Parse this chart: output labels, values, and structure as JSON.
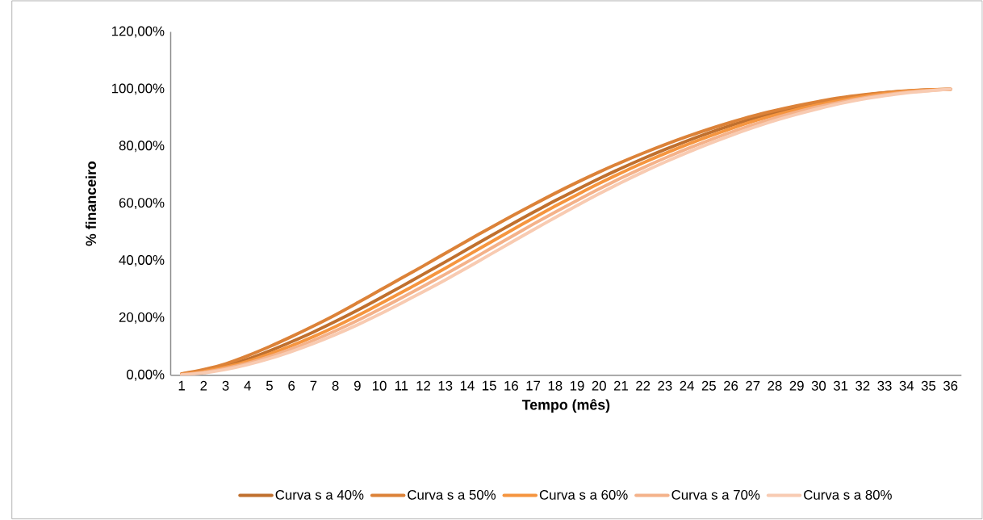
{
  "chart_data": {
    "type": "line",
    "xlabel": "Tempo (mês)",
    "ylabel": "% financeiro",
    "categories": [
      "1",
      "2",
      "3",
      "4",
      "5",
      "6",
      "7",
      "8",
      "9",
      "10",
      "11",
      "12",
      "13",
      "14",
      "15",
      "16",
      "17",
      "18",
      "19",
      "20",
      "21",
      "22",
      "23",
      "24",
      "25",
      "26",
      "27",
      "28",
      "29",
      "30",
      "31",
      "32",
      "33",
      "34",
      "35",
      "36"
    ],
    "ylim": [
      0,
      120
    ],
    "yticks": [
      {
        "value": 0,
        "label": "0,00%"
      },
      {
        "value": 20,
        "label": "20,00%"
      },
      {
        "value": 40,
        "label": "40,00%"
      },
      {
        "value": 60,
        "label": "60,00%"
      },
      {
        "value": 80,
        "label": "80,00%"
      },
      {
        "value": 100,
        "label": "100,00%"
      },
      {
        "value": 120,
        "label": "120,00%"
      }
    ],
    "grid": false,
    "legend": "bottom",
    "marker": "none",
    "line_style": "solid",
    "series": [
      {
        "name": "Curva s a 40%",
        "color": "#c0702e",
        "values": [
          0.4,
          1.6,
          3.3,
          5.6,
          8.5,
          11.7,
          15.1,
          18.8,
          22.7,
          26.8,
          31,
          35.3,
          39.6,
          44,
          48.4,
          52.7,
          56.9,
          61,
          64.9,
          68.7,
          72.3,
          75.7,
          78.9,
          81.9,
          84.7,
          87.3,
          89.7,
          91.8,
          93.7,
          95.3,
          96.7,
          97.8,
          98.7,
          99.3,
          99.8,
          100
        ]
      },
      {
        "name": "Curva s a 50%",
        "color": "#dc8238",
        "values": [
          0.5,
          2,
          4,
          6.8,
          10,
          13.5,
          17.2,
          21.1,
          25.3,
          29.6,
          33.9,
          38.2,
          42.6,
          47,
          51.3,
          55.5,
          59.6,
          63.6,
          67.4,
          71,
          74.4,
          77.6,
          80.6,
          83.4,
          86,
          88.4,
          90.6,
          92.5,
          94.2,
          95.7,
          97,
          98,
          98.8,
          99.4,
          99.8,
          100
        ]
      },
      {
        "name": "Curva s a 60%",
        "color": "#f5953f",
        "values": [
          0.3,
          1.3,
          2.8,
          4.8,
          7.4,
          10.3,
          13.5,
          17,
          20.8,
          24.8,
          28.9,
          33.1,
          37.4,
          41.8,
          46.2,
          50.6,
          54.9,
          59.1,
          63.1,
          67,
          70.7,
          74.2,
          77.5,
          80.6,
          83.5,
          86.2,
          88.7,
          90.9,
          92.9,
          94.6,
          96.1,
          97.4,
          98.4,
          99.2,
          99.7,
          100
        ]
      },
      {
        "name": "Curva s a 70%",
        "color": "#f4b28a",
        "values": [
          0.2,
          1,
          2.4,
          4.2,
          6.5,
          9.2,
          12.2,
          15.5,
          19.1,
          23,
          27,
          31.1,
          35.3,
          39.6,
          44,
          48.4,
          52.8,
          57,
          61.1,
          65.1,
          68.9,
          72.5,
          75.9,
          79.1,
          82.1,
          84.9,
          87.5,
          89.9,
          92,
          93.9,
          95.5,
          96.9,
          98,
          98.9,
          99.5,
          100
        ]
      },
      {
        "name": "Curva s a 80%",
        "color": "#f8cbb2",
        "values": [
          0.1,
          0.8,
          2,
          3.7,
          5.8,
          8.3,
          11.1,
          14.2,
          17.6,
          21.3,
          25.2,
          29.2,
          33.3,
          37.6,
          42,
          46.4,
          50.8,
          55.1,
          59.3,
          63.4,
          67.3,
          71,
          74.5,
          77.8,
          80.9,
          83.8,
          86.5,
          89,
          91.2,
          93.2,
          95,
          96.5,
          97.7,
          98.7,
          99.4,
          100
        ]
      }
    ]
  }
}
